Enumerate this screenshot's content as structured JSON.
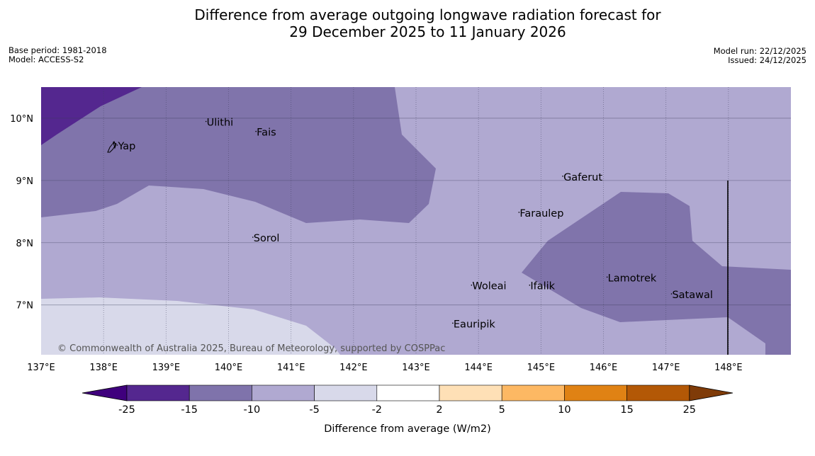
{
  "title": {
    "line1": "Difference from average outgoing longwave radiation forecast for",
    "line2": "29 December 2025 to 11 January 2026"
  },
  "info_left": {
    "base_period": "Base period: 1981-2018",
    "model": "Model: ACCESS-S2"
  },
  "info_right": {
    "model_run": "Model run: 22/12/2025",
    "issued": "Issued: 24/12/2025"
  },
  "map": {
    "extent": {
      "lon": [
        137,
        149
      ],
      "lat": [
        6.2,
        10.5
      ]
    },
    "lat_ticks": [
      "10°N",
      "9°N",
      "8°N",
      "7°N"
    ],
    "lon_ticks": [
      "137°E",
      "138°E",
      "139°E",
      "140°E",
      "141°E",
      "142°E",
      "143°E",
      "144°E",
      "145°E",
      "146°E",
      "147°E",
      "148°E"
    ],
    "places": [
      {
        "name": "Yap",
        "lon": 138.23,
        "lat": 9.5
      },
      {
        "name": "Ulithi",
        "lon": 139.65,
        "lat": 9.88
      },
      {
        "name": "Fais",
        "lon": 140.45,
        "lat": 9.72
      },
      {
        "name": "Gaferut",
        "lon": 145.36,
        "lat": 9.0
      },
      {
        "name": "Faraulep",
        "lon": 144.66,
        "lat": 8.42
      },
      {
        "name": "Sorol",
        "lon": 140.4,
        "lat": 8.02
      },
      {
        "name": "Woleai",
        "lon": 143.9,
        "lat": 7.25
      },
      {
        "name": "Ifalik",
        "lon": 144.83,
        "lat": 7.25
      },
      {
        "name": "Lamotrek",
        "lon": 146.07,
        "lat": 7.38
      },
      {
        "name": "Satawal",
        "lon": 147.1,
        "lat": 7.11
      },
      {
        "name": "Eauripik",
        "lon": 143.6,
        "lat": 6.64
      }
    ],
    "copyright": "© Commonwealth of Australia 2025, Bureau of Meteorology, supported by COSPPac"
  },
  "colorbar": {
    "label": "Difference from average (W/m2)",
    "ticks": [
      "-25",
      "-15",
      "-10",
      "-5",
      "-2",
      "2",
      "5",
      "10",
      "15",
      "25"
    ],
    "colors": [
      "#3f007d",
      "#54278f",
      "#7f73ab",
      "#b0a9d1",
      "#d8d9ea",
      "#ffffff",
      "#fee0b6",
      "#fdb863",
      "#e08214",
      "#b35806",
      "#7f3b08"
    ]
  },
  "field_colors": {
    "band_15_10": "#8074ab",
    "band_10_5": "#b0a9d1",
    "band_5_2": "#d8d9ea",
    "band_25_15": "#54278f"
  }
}
